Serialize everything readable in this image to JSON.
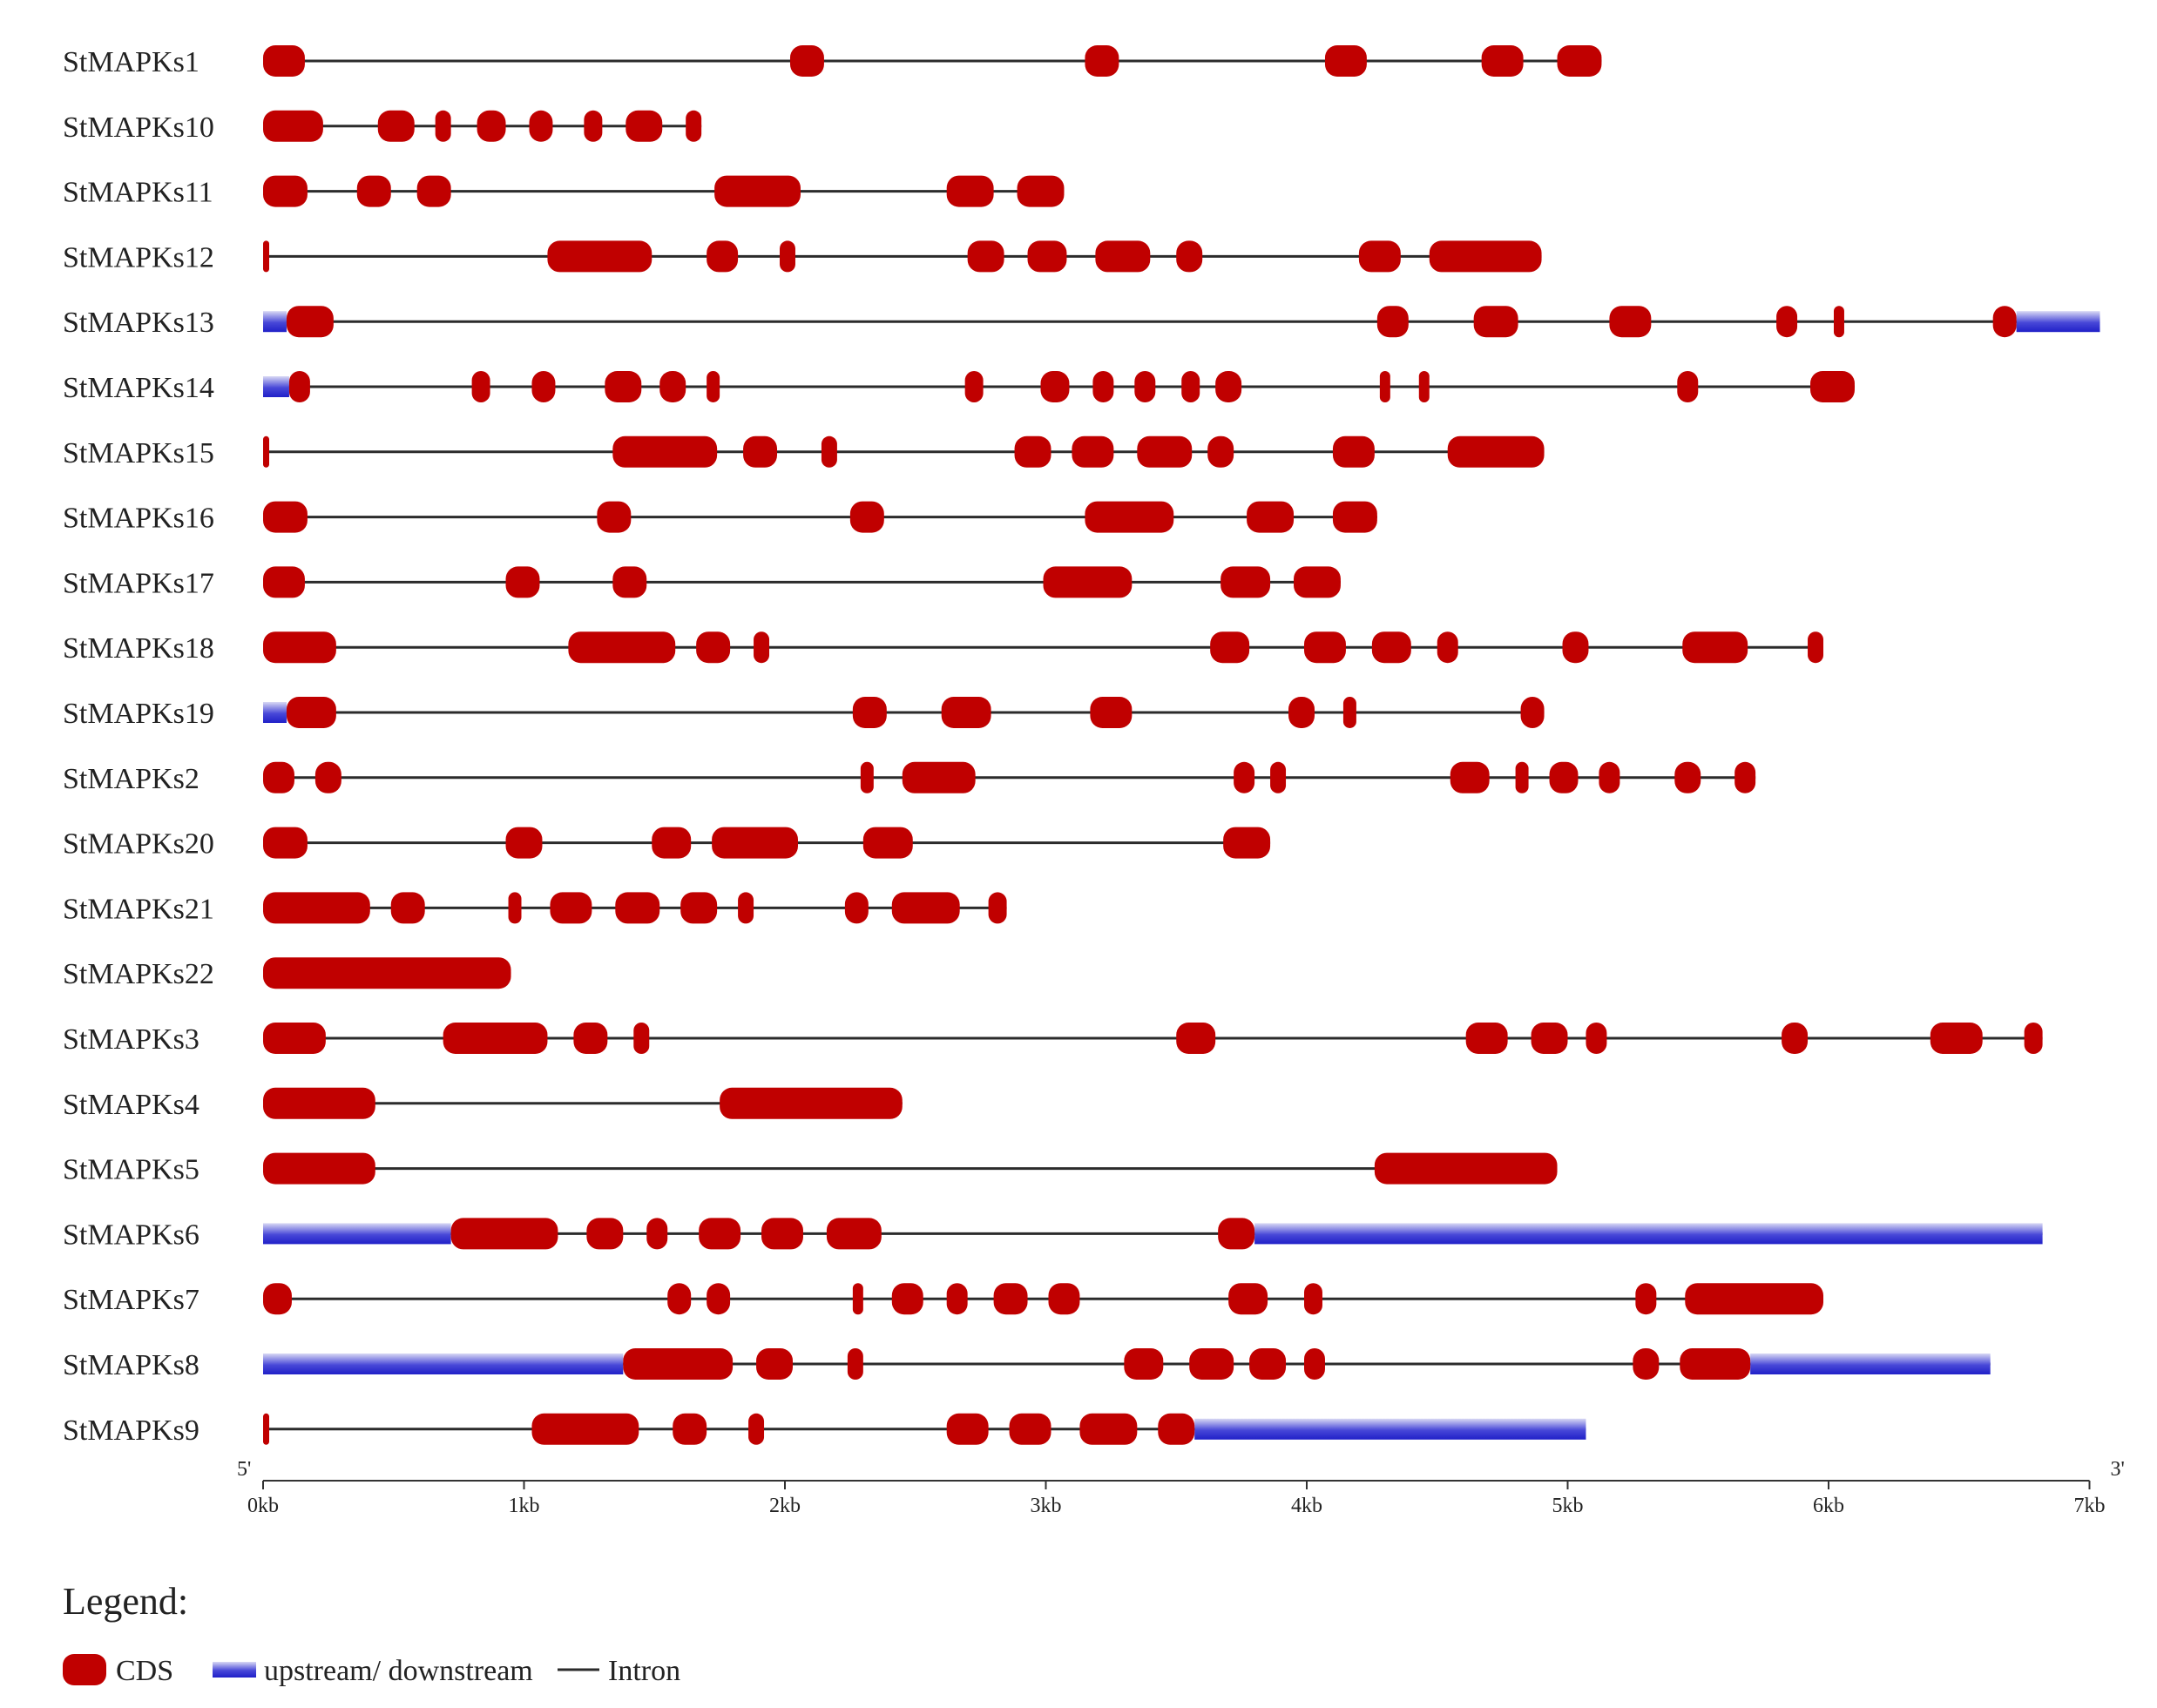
{
  "chart_data": {
    "type": "gene-structure",
    "colors": {
      "cds": "#c00000",
      "utr_dark": "#2020c8",
      "utr_light": "#d8d8f4",
      "intron": "#2b2b2b",
      "axis": "#333333"
    },
    "axis": {
      "min_kb": 0,
      "max_kb": 7,
      "ticks": [
        {
          "value": 0,
          "label": "0kb"
        },
        {
          "value": 1,
          "label": "1kb"
        },
        {
          "value": 2,
          "label": "2kb"
        },
        {
          "value": 3,
          "label": "3kb"
        },
        {
          "value": 4,
          "label": "4kb"
        },
        {
          "value": 5,
          "label": "5kb"
        },
        {
          "value": 6,
          "label": "6kb"
        },
        {
          "value": 7,
          "label": "7kb"
        }
      ],
      "five_prime": "5'",
      "three_prime": "3'"
    },
    "genes": [
      {
        "name": "StMAPKs1",
        "start": 0,
        "end": 5.13,
        "utr": [],
        "cds": [
          [
            0,
            0.16
          ],
          [
            2.02,
            2.15
          ],
          [
            3.15,
            3.28
          ],
          [
            4.07,
            4.23
          ],
          [
            4.67,
            4.83
          ],
          [
            4.96,
            5.13
          ]
        ]
      },
      {
        "name": "StMAPKs10",
        "start": 0,
        "end": 1.68,
        "utr": [],
        "cds": [
          [
            0,
            0.23
          ],
          [
            0.44,
            0.58
          ],
          [
            0.66,
            0.72
          ],
          [
            0.82,
            0.93
          ],
          [
            1.02,
            1.11
          ],
          [
            1.23,
            1.3
          ],
          [
            1.39,
            1.53
          ],
          [
            1.62,
            1.68
          ]
        ]
      },
      {
        "name": "StMAPKs11",
        "start": 0,
        "end": 3.07,
        "utr": [],
        "cds": [
          [
            0,
            0.17
          ],
          [
            0.36,
            0.49
          ],
          [
            0.59,
            0.72
          ],
          [
            1.73,
            2.06
          ],
          [
            2.62,
            2.8
          ],
          [
            2.89,
            3.07
          ]
        ]
      },
      {
        "name": "StMAPKs12",
        "start": 0,
        "end": 4.9,
        "utr": [],
        "cds": [
          [
            0,
            0.02
          ],
          [
            1.09,
            1.49
          ],
          [
            1.7,
            1.82
          ],
          [
            1.98,
            2.04
          ],
          [
            2.7,
            2.84
          ],
          [
            2.93,
            3.08
          ],
          [
            3.19,
            3.4
          ],
          [
            3.5,
            3.6
          ],
          [
            4.2,
            4.36
          ],
          [
            4.47,
            4.9
          ]
        ]
      },
      {
        "name": "StMAPKs13",
        "start": 0,
        "end": 7.04,
        "utr": [
          [
            0,
            0.09
          ],
          [
            6.72,
            7.04
          ]
        ],
        "cds": [
          [
            0.09,
            0.27
          ],
          [
            4.27,
            4.39
          ],
          [
            4.64,
            4.81
          ],
          [
            5.16,
            5.32
          ],
          [
            5.8,
            5.88
          ],
          [
            6.02,
            6.06
          ],
          [
            6.63,
            6.72
          ]
        ]
      },
      {
        "name": "StMAPKs14",
        "start": 0,
        "end": 6.1,
        "utr": [
          [
            0,
            0.1
          ]
        ],
        "cds": [
          [
            0.1,
            0.18
          ],
          [
            0.8,
            0.87
          ],
          [
            1.03,
            1.12
          ],
          [
            1.31,
            1.45
          ],
          [
            1.52,
            1.62
          ],
          [
            1.7,
            1.75
          ],
          [
            2.69,
            2.76
          ],
          [
            2.98,
            3.09
          ],
          [
            3.18,
            3.26
          ],
          [
            3.34,
            3.42
          ],
          [
            3.52,
            3.59
          ],
          [
            3.65,
            3.75
          ],
          [
            4.28,
            4.32
          ],
          [
            4.43,
            4.47
          ],
          [
            5.42,
            5.5
          ],
          [
            5.93,
            6.1
          ]
        ]
      },
      {
        "name": "StMAPKs15",
        "start": 0,
        "end": 4.91,
        "utr": [],
        "cds": [
          [
            0,
            0.02
          ],
          [
            1.34,
            1.74
          ],
          [
            1.84,
            1.97
          ],
          [
            2.14,
            2.2
          ],
          [
            2.88,
            3.02
          ],
          [
            3.1,
            3.26
          ],
          [
            3.35,
            3.56
          ],
          [
            3.62,
            3.72
          ],
          [
            4.1,
            4.26
          ],
          [
            4.54,
            4.91
          ]
        ]
      },
      {
        "name": "StMAPKs16",
        "start": 0,
        "end": 4.27,
        "utr": [],
        "cds": [
          [
            0,
            0.17
          ],
          [
            1.28,
            1.41
          ],
          [
            2.25,
            2.38
          ],
          [
            3.15,
            3.49
          ],
          [
            3.77,
            3.95
          ],
          [
            4.1,
            4.27
          ]
        ]
      },
      {
        "name": "StMAPKs17",
        "start": 0,
        "end": 4.13,
        "utr": [],
        "cds": [
          [
            0,
            0.16
          ],
          [
            0.93,
            1.06
          ],
          [
            1.34,
            1.47
          ],
          [
            2.99,
            3.33
          ],
          [
            3.67,
            3.86
          ],
          [
            3.95,
            4.13
          ]
        ]
      },
      {
        "name": "StMAPKs18",
        "start": 0,
        "end": 5.98,
        "utr": [],
        "cds": [
          [
            0,
            0.28
          ],
          [
            1.17,
            1.58
          ],
          [
            1.66,
            1.79
          ],
          [
            1.88,
            1.94
          ],
          [
            3.63,
            3.78
          ],
          [
            3.99,
            4.15
          ],
          [
            4.25,
            4.4
          ],
          [
            4.5,
            4.58
          ],
          [
            4.98,
            5.08
          ],
          [
            5.44,
            5.69
          ],
          [
            5.92,
            5.98
          ]
        ]
      },
      {
        "name": "StMAPKs19",
        "start": 0,
        "end": 4.91,
        "utr": [
          [
            0,
            0.09
          ]
        ],
        "cds": [
          [
            0.09,
            0.28
          ],
          [
            2.26,
            2.39
          ],
          [
            2.6,
            2.79
          ],
          [
            3.17,
            3.33
          ],
          [
            3.93,
            4.03
          ],
          [
            4.14,
            4.19
          ],
          [
            4.82,
            4.91
          ]
        ]
      },
      {
        "name": "StMAPKs2",
        "start": 0,
        "end": 5.72,
        "utr": [],
        "cds": [
          [
            0,
            0.12
          ],
          [
            0.2,
            0.3
          ],
          [
            2.29,
            2.34
          ],
          [
            2.45,
            2.73
          ],
          [
            3.72,
            3.8
          ],
          [
            3.86,
            3.92
          ],
          [
            4.55,
            4.7
          ],
          [
            4.8,
            4.85
          ],
          [
            4.93,
            5.04
          ],
          [
            5.12,
            5.2
          ],
          [
            5.41,
            5.51
          ],
          [
            5.64,
            5.72
          ]
        ]
      },
      {
        "name": "StMAPKs20",
        "start": 0,
        "end": 3.86,
        "utr": [],
        "cds": [
          [
            0,
            0.17
          ],
          [
            0.93,
            1.07
          ],
          [
            1.49,
            1.64
          ],
          [
            1.72,
            2.05
          ],
          [
            2.3,
            2.49
          ],
          [
            3.68,
            3.86
          ]
        ]
      },
      {
        "name": "StMAPKs21",
        "start": 0,
        "end": 2.85,
        "utr": [],
        "cds": [
          [
            0,
            0.41
          ],
          [
            0.49,
            0.62
          ],
          [
            0.94,
            0.99
          ],
          [
            1.1,
            1.26
          ],
          [
            1.35,
            1.52
          ],
          [
            1.6,
            1.74
          ],
          [
            1.82,
            1.88
          ],
          [
            2.23,
            2.32
          ],
          [
            2.41,
            2.67
          ],
          [
            2.78,
            2.85
          ]
        ]
      },
      {
        "name": "StMAPKs22",
        "start": 0,
        "end": 0.95,
        "utr": [],
        "cds": [
          [
            0,
            0.95
          ]
        ]
      },
      {
        "name": "StMAPKs3",
        "start": 0,
        "end": 6.82,
        "utr": [],
        "cds": [
          [
            0,
            0.24
          ],
          [
            0.69,
            1.09
          ],
          [
            1.19,
            1.32
          ],
          [
            1.42,
            1.48
          ],
          [
            3.5,
            3.65
          ],
          [
            4.61,
            4.77
          ],
          [
            4.86,
            5.0
          ],
          [
            5.07,
            5.15
          ],
          [
            5.82,
            5.92
          ],
          [
            6.39,
            6.59
          ],
          [
            6.75,
            6.82
          ]
        ]
      },
      {
        "name": "StMAPKs4",
        "start": 0,
        "end": 2.45,
        "utr": [],
        "cds": [
          [
            0,
            0.43
          ],
          [
            1.75,
            2.45
          ]
        ]
      },
      {
        "name": "StMAPKs5",
        "start": 0,
        "end": 4.96,
        "utr": [],
        "cds": [
          [
            0,
            0.43
          ],
          [
            4.26,
            4.96
          ]
        ]
      },
      {
        "name": "StMAPKs6",
        "start": 0,
        "end": 6.82,
        "utr": [
          [
            0,
            0.72
          ],
          [
            3.8,
            6.82
          ]
        ],
        "cds": [
          [
            0.72,
            1.13
          ],
          [
            1.24,
            1.38
          ],
          [
            1.47,
            1.55
          ],
          [
            1.67,
            1.83
          ],
          [
            1.91,
            2.07
          ],
          [
            2.16,
            2.37
          ],
          [
            3.66,
            3.8
          ]
        ]
      },
      {
        "name": "StMAPKs7",
        "start": 0,
        "end": 5.98,
        "utr": [],
        "cds": [
          [
            0,
            0.11
          ],
          [
            1.55,
            1.64
          ],
          [
            1.7,
            1.79
          ],
          [
            2.26,
            2.3
          ],
          [
            2.41,
            2.53
          ],
          [
            2.62,
            2.7
          ],
          [
            2.8,
            2.93
          ],
          [
            3.01,
            3.13
          ],
          [
            3.7,
            3.85
          ],
          [
            3.99,
            4.06
          ],
          [
            5.26,
            5.34
          ],
          [
            5.45,
            5.98
          ]
        ]
      },
      {
        "name": "StMAPKs8",
        "start": 0,
        "end": 6.62,
        "utr": [
          [
            0,
            1.38
          ],
          [
            5.7,
            6.62
          ]
        ],
        "cds": [
          [
            1.38,
            1.8
          ],
          [
            1.89,
            2.03
          ],
          [
            2.24,
            2.3
          ],
          [
            3.3,
            3.45
          ],
          [
            3.55,
            3.72
          ],
          [
            3.78,
            3.92
          ],
          [
            3.99,
            4.07
          ],
          [
            5.25,
            5.35
          ],
          [
            5.43,
            5.7
          ]
        ]
      },
      {
        "name": "StMAPKs9",
        "start": 0,
        "end": 5.07,
        "utr": [
          [
            3.57,
            5.07
          ]
        ],
        "cds": [
          [
            0,
            0.02
          ],
          [
            1.03,
            1.44
          ],
          [
            1.57,
            1.7
          ],
          [
            1.86,
            1.92
          ],
          [
            2.62,
            2.78
          ],
          [
            2.86,
            3.02
          ],
          [
            3.13,
            3.35
          ],
          [
            3.43,
            3.57
          ]
        ]
      }
    ]
  },
  "legend": {
    "title": "Legend:",
    "cds_label": "CDS",
    "utr_label": "upstream/ downstream",
    "intron_label": "Intron"
  }
}
